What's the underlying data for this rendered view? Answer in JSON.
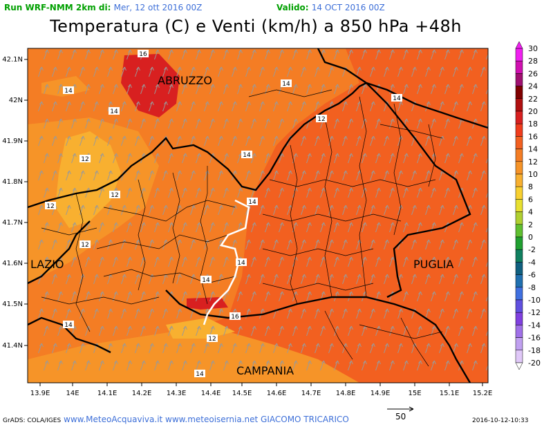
{
  "header": {
    "run_label": "Run WRF-NMM 2km di:",
    "run_date": "Mer, 12 ott 2016 00Z",
    "valid_label": "Valido:",
    "valid_date": "14 OCT 2016 00Z"
  },
  "title": "Temperatura (C) e Venti (km/h) a 850 hPa +48h",
  "axes": {
    "x_ticks": [
      "13.9E",
      "14E",
      "14.1E",
      "14.2E",
      "14.3E",
      "14.4E",
      "14.5E",
      "14.6E",
      "14.7E",
      "14.8E",
      "14.9E",
      "15E",
      "15.1E",
      "15.2E"
    ],
    "y_ticks": [
      "42.1N",
      "42N",
      "41.9N",
      "41.8N",
      "41.7N",
      "41.6N",
      "41.5N",
      "41.4N"
    ]
  },
  "regions": [
    {
      "id": "abruzzo",
      "label": "ABRUZZO"
    },
    {
      "id": "lazio",
      "label": "LAZIO"
    },
    {
      "id": "puglia",
      "label": "PUGLIA"
    },
    {
      "id": "campania",
      "label": "CAMPANIA"
    }
  ],
  "contour_labels": [
    "16",
    "14",
    "14",
    "14",
    "14",
    "12",
    "14",
    "12",
    "12",
    "14",
    "12",
    "12",
    "14",
    "14",
    "16",
    "14",
    "12",
    "14"
  ],
  "colorbar": {
    "values": [
      "30",
      "28",
      "26",
      "24",
      "22",
      "20",
      "18",
      "16",
      "14",
      "12",
      "10",
      "8",
      "6",
      "4",
      "2",
      "0",
      "-2",
      "-4",
      "-6",
      "-8",
      "-10",
      "-12",
      "-14",
      "-16",
      "-18",
      "-20"
    ],
    "colors": [
      "#f020f0",
      "#d010b0",
      "#a01070",
      "#800000",
      "#b01010",
      "#d82020",
      "#f03c1c",
      "#f26020",
      "#f47d24",
      "#f69428",
      "#f8b030",
      "#f8d030",
      "#e8e030",
      "#b0d030",
      "#60c030",
      "#20a030",
      "#108060",
      "#106080",
      "#2070b0",
      "#4070e0",
      "#6050e0",
      "#8040e0",
      "#a070e8",
      "#c0a0f0",
      "#e0c8f8",
      "#ffffff"
    ]
  },
  "wind_reference": {
    "value": "50"
  },
  "footer": {
    "grads": "GrADS: COLA/IGES",
    "credits": "www.MeteoAcquaviva.it www.meteoisernia.net",
    "author": "GIACOMO TRICARICO",
    "timestamp": "2016-10-12-10:33"
  }
}
